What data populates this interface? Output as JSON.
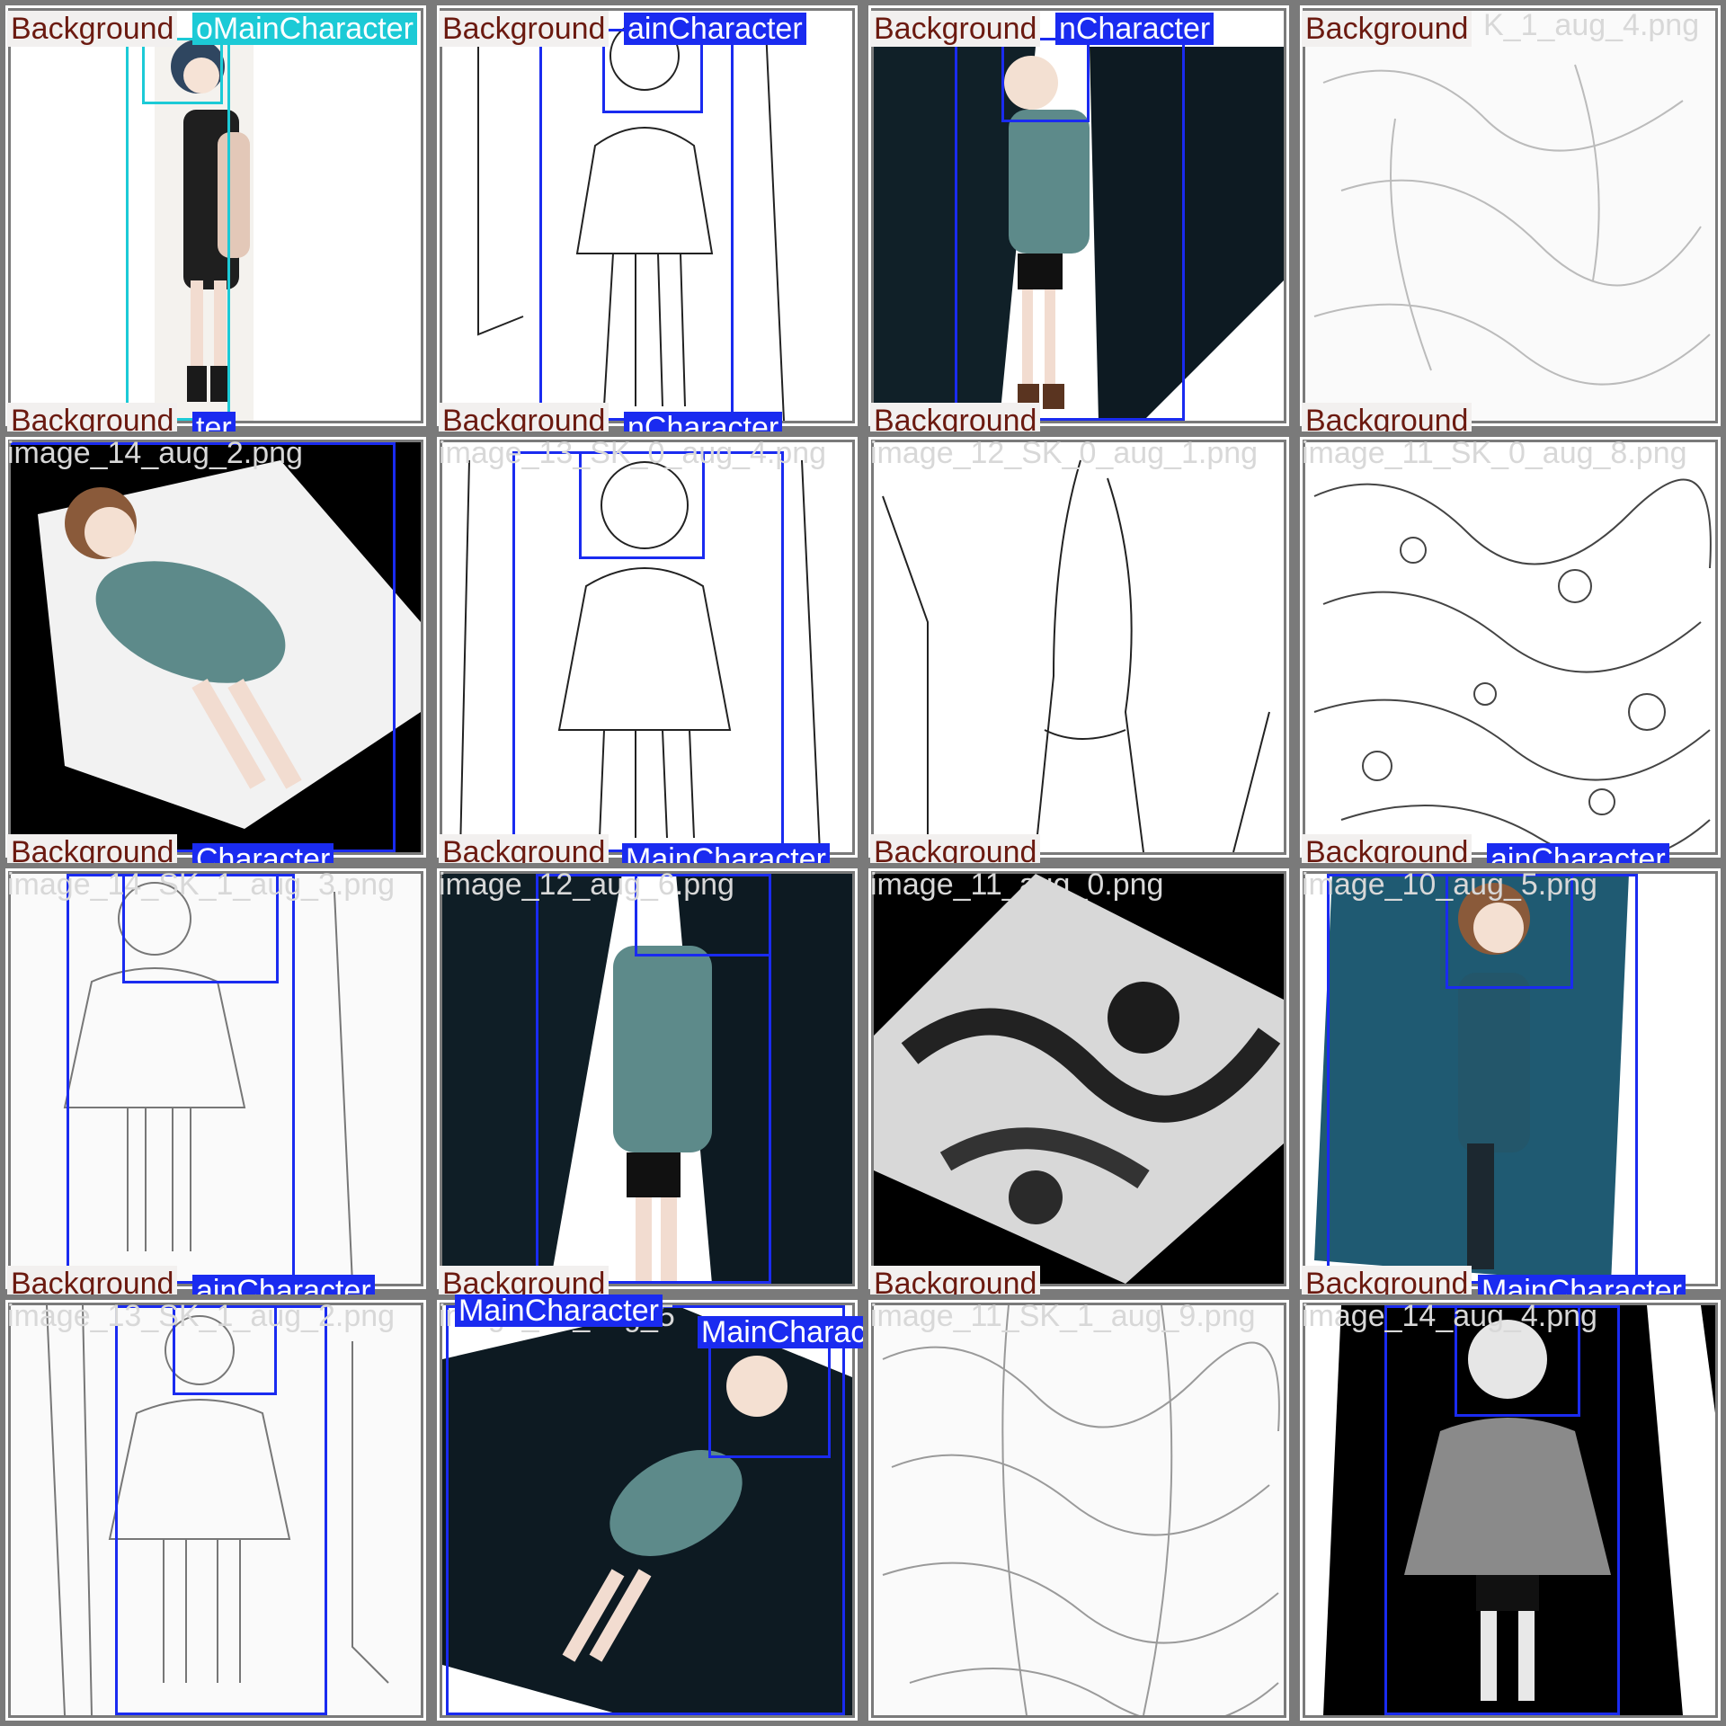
{
  "labels": {
    "background": "Background",
    "main_character": "MainCharacter"
  },
  "colors": {
    "grid_bg": "#7a7a7a",
    "background_label_text": "#6b1a10",
    "background_label_bg": "#f2f0ef",
    "main_character_blue": "#1a2bf0",
    "main_character_cyan": "#1ccad6"
  },
  "tiles": [
    {
      "id": "r1c1",
      "filename": "",
      "bg_top": "Background",
      "bg_bottom": "Background",
      "mc_top": "oMainCharacter",
      "mc_bottom": "ter",
      "theme": "color-light"
    },
    {
      "id": "r1c2",
      "filename": "",
      "bg_top": "Background",
      "bg_bottom": "Background",
      "mc_top": "ainCharacter",
      "mc_bottom": "nCharacter",
      "theme": "line-art"
    },
    {
      "id": "r1c3",
      "filename": "",
      "bg_top": "Background",
      "bg_bottom": "Background",
      "mc_top": "nCharacter",
      "mc_bottom": "",
      "theme": "color-dark"
    },
    {
      "id": "r1c4",
      "filename": "K_1_aug_4.png",
      "bg_top": "Background",
      "bg_bottom": "Background",
      "mc_top": "",
      "mc_bottom": "",
      "theme": "sketch"
    },
    {
      "id": "r2c1",
      "filename": "image_14_aug_2.png",
      "bg_top": "",
      "bg_bottom": "Background",
      "mc_top": "",
      "mc_bottom": "Character",
      "theme": "color-black"
    },
    {
      "id": "r2c2",
      "filename": "image_13_SK_0_aug_4.png",
      "bg_top": "",
      "bg_bottom": "Background",
      "mc_top": "",
      "mc_bottom": "MainCharacter",
      "theme": "line-art"
    },
    {
      "id": "r2c3",
      "filename": "image_12_SK_0_aug_1.png",
      "bg_top": "",
      "bg_bottom": "Background",
      "mc_top": "",
      "mc_bottom": "",
      "theme": "line-art"
    },
    {
      "id": "r2c4",
      "filename": "image_11_SK_0_aug_8.png",
      "bg_top": "",
      "bg_bottom": "Background",
      "mc_top": "",
      "mc_bottom": "ainCharacter",
      "theme": "sketch-dense"
    },
    {
      "id": "r3c1",
      "filename": "image_14_SK_1_aug_3.png",
      "bg_top": "",
      "bg_bottom": "Background",
      "mc_top": "",
      "mc_bottom": "ainCharacter",
      "theme": "sketch"
    },
    {
      "id": "r3c2",
      "filename": "image_12_aug_6.png",
      "bg_top": "",
      "bg_bottom": "Background",
      "mc_top": "",
      "mc_bottom": "",
      "theme": "color-dark"
    },
    {
      "id": "r3c3",
      "filename": "image_11_aug_0.png",
      "bg_top": "",
      "bg_bottom": "Background",
      "mc_top": "",
      "mc_bottom": "",
      "theme": "grayscale"
    },
    {
      "id": "r3c4",
      "filename": "image_10_aug_5.png",
      "bg_top": "",
      "bg_bottom": "Background",
      "mc_top": "",
      "mc_bottom": "MainCharacter",
      "theme": "teal"
    },
    {
      "id": "r4c1",
      "filename": "image_13_SK_1_aug_2.png",
      "bg_top": "",
      "bg_bottom": "",
      "mc_top": "",
      "mc_bottom": "",
      "theme": "sketch"
    },
    {
      "id": "r4c2",
      "filename": "image_12_aug_5",
      "bg_top": "",
      "bg_bottom": "",
      "mc_top": "MainCharacter",
      "mc_top_2": "MainCharacter",
      "mc_bottom": "",
      "theme": "color-dark"
    },
    {
      "id": "r4c3",
      "filename": "image_11_SK_1_aug_9.png",
      "bg_top": "",
      "bg_bottom": "",
      "mc_top": "",
      "mc_bottom": "",
      "theme": "sketch-dense"
    },
    {
      "id": "r4c4",
      "filename": "image_14_aug_4.png",
      "bg_top": "",
      "bg_bottom": "",
      "mc_top": "",
      "mc_bottom": "",
      "theme": "grayscale-black"
    }
  ]
}
